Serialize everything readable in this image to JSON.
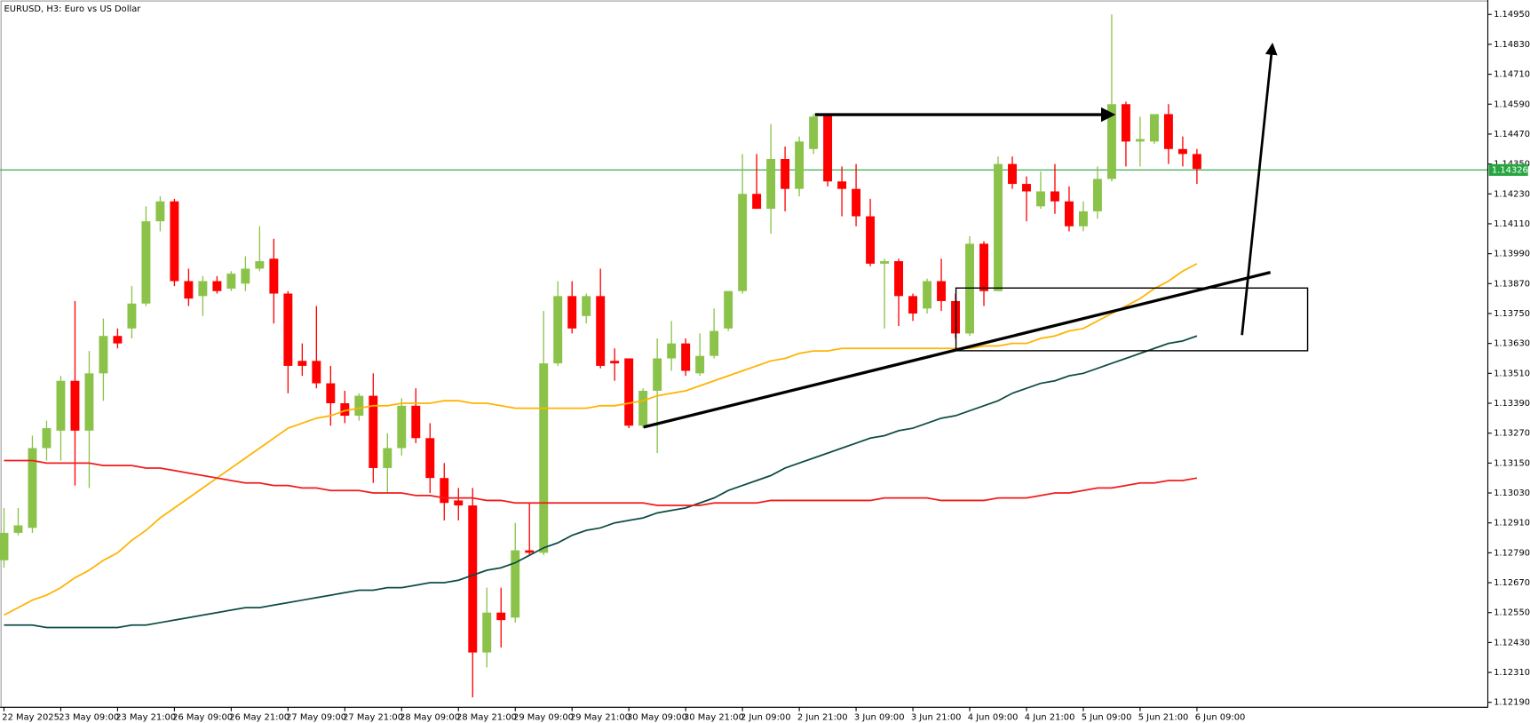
{
  "chart_data": {
    "type": "candlestick",
    "title": "EURUSD, H3:  Euro vs US Dollar",
    "categories": [
      "22 May 2025",
      null,
      null,
      null,
      "23 May 09:00",
      null,
      null,
      null,
      "23 May 21:00",
      null,
      null,
      null,
      "26 May 09:00",
      null,
      null,
      null,
      "26 May 21:00",
      null,
      null,
      null,
      "27 May 09:00",
      null,
      null,
      null,
      "27 May 21:00",
      null,
      null,
      null,
      "28 May 09:00",
      null,
      null,
      null,
      "28 May 21:00",
      null,
      null,
      null,
      "29 May 09:00",
      null,
      null,
      null,
      "29 May 21:00",
      null,
      null,
      null,
      "30 May 09:00",
      null,
      null,
      null,
      "30 May 21:00",
      null,
      null,
      null,
      "2 Jun 09:00",
      null,
      null,
      null,
      "2 Jun 21:00",
      null,
      null,
      null,
      "3 Jun 09:00",
      null,
      null,
      null,
      "3 Jun 21:00",
      null,
      null,
      null,
      "4 Jun 09:00",
      null,
      null,
      null,
      "4 Jun 21:00",
      null,
      null,
      null,
      "5 Jun 09:00",
      null,
      null,
      null,
      "5 Jun 21:00",
      null,
      null,
      null,
      "6 Jun 09:00"
    ],
    "open": [
      1.1276,
      1.1287,
      1.1289,
      1.1321,
      1.1328,
      1.1348,
      1.1328,
      1.1351,
      1.1366,
      1.1369,
      1.1379,
      1.1412,
      1.142,
      1.1388,
      1.1382,
      1.1388,
      1.1385,
      1.1387,
      1.1393,
      1.1397,
      1.1383,
      1.1356,
      1.1356,
      1.1347,
      1.1339,
      1.1334,
      1.1342,
      1.1313,
      1.1321,
      1.1338,
      1.1325,
      1.1309,
      1.13,
      1.1298,
      1.1239,
      1.1255,
      1.1253,
      1.128,
      1.1279,
      1.1355,
      1.1382,
      1.1374,
      1.1382,
      1.1356,
      1.1357,
      1.133,
      1.1344,
      1.1357,
      1.1363,
      1.1351,
      1.1358,
      1.1369,
      1.1384,
      1.1423,
      1.1417,
      1.1437,
      1.1425,
      1.1441,
      1.1455,
      1.1428,
      1.1425,
      1.1414,
      1.1395,
      1.1396,
      1.1382,
      1.1377,
      1.1388,
      1.138,
      1.1367,
      1.1403,
      1.1384,
      1.1435,
      1.1427,
      1.1418,
      1.1424,
      1.142,
      1.141,
      1.1416,
      1.1429,
      1.1459,
      1.1444,
      1.1444,
      1.1455,
      1.1441,
      1.1439
    ],
    "high": [
      1.1297,
      1.1297,
      1.1326,
      1.1332,
      1.135,
      1.138,
      1.136,
      1.1373,
      1.1369,
      1.1386,
      1.1418,
      1.1422,
      1.1421,
      1.1393,
      1.139,
      1.139,
      1.1392,
      1.1398,
      1.141,
      1.1405,
      1.1384,
      1.1363,
      1.1378,
      1.1354,
      1.1344,
      1.1343,
      1.1351,
      1.1327,
      1.1341,
      1.1345,
      1.1331,
      1.1315,
      1.1305,
      1.1305,
      1.1265,
      1.1265,
      1.1291,
      1.1299,
      1.1376,
      1.1388,
      1.1388,
      1.1383,
      1.1393,
      1.1361,
      1.1357,
      1.1345,
      1.1365,
      1.1372,
      1.1365,
      1.1367,
      1.1377,
      1.1384,
      1.1439,
      1.1439,
      1.1451,
      1.1442,
      1.1446,
      1.1455,
      1.1455,
      1.1434,
      1.1435,
      1.1421,
      1.1397,
      1.1397,
      1.1383,
      1.1389,
      1.1397,
      1.1383,
      1.1406,
      1.1404,
      1.1438,
      1.1438,
      1.143,
      1.1432,
      1.1435,
      1.1426,
      1.142,
      1.1434,
      1.1495,
      1.146,
      1.1454,
      1.1455,
      1.1459,
      1.1446,
      1.1441
    ],
    "low": [
      1.1273,
      1.1286,
      1.1287,
      1.1316,
      1.1316,
      1.1306,
      1.1305,
      1.134,
      1.1361,
      1.1365,
      1.1378,
      1.1408,
      1.1386,
      1.1378,
      1.1374,
      1.1383,
      1.1384,
      1.1384,
      1.1392,
      1.1371,
      1.1343,
      1.135,
      1.1345,
      1.133,
      1.1331,
      1.1332,
      1.1307,
      1.1303,
      1.1318,
      1.1323,
      1.1303,
      1.1292,
      1.1292,
      1.1221,
      1.1233,
      1.1241,
      1.1251,
      1.1278,
      1.1278,
      1.1354,
      1.1367,
      1.1371,
      1.1353,
      1.1348,
      1.1329,
      1.1329,
      1.1319,
      1.1352,
      1.135,
      1.135,
      1.1357,
      1.1368,
      1.1383,
      1.1417,
      1.1407,
      1.1416,
      1.1422,
      1.1439,
      1.1426,
      1.1414,
      1.141,
      1.1394,
      1.1369,
      1.137,
      1.1372,
      1.1375,
      1.1376,
      1.1365,
      1.1366,
      1.1378,
      1.1384,
      1.1425,
      1.1412,
      1.1417,
      1.1415,
      1.1408,
      1.1408,
      1.1413,
      1.1428,
      1.1434,
      1.1434,
      1.1443,
      1.1435,
      1.1434,
      1.1427
    ],
    "close": [
      1.1287,
      1.129,
      1.1321,
      1.1329,
      1.1348,
      1.1328,
      1.1351,
      1.1366,
      1.1363,
      1.1379,
      1.1412,
      1.142,
      1.1388,
      1.1381,
      1.1388,
      1.1384,
      1.1391,
      1.1393,
      1.1396,
      1.1383,
      1.1354,
      1.1354,
      1.1347,
      1.1339,
      1.1334,
      1.1342,
      1.1313,
      1.1321,
      1.1338,
      1.1325,
      1.1309,
      1.1299,
      1.1298,
      1.1239,
      1.1255,
      1.1252,
      1.128,
      1.1279,
      1.1355,
      1.1382,
      1.1369,
      1.1382,
      1.1354,
      1.1355,
      1.133,
      1.1344,
      1.1357,
      1.1363,
      1.1352,
      1.1358,
      1.1368,
      1.1384,
      1.1423,
      1.1417,
      1.1437,
      1.1425,
      1.1444,
      1.1454,
      1.1428,
      1.1425,
      1.1414,
      1.1395,
      1.1396,
      1.1382,
      1.1375,
      1.1388,
      1.138,
      1.1367,
      1.1403,
      1.1384,
      1.1435,
      1.1427,
      1.1424,
      1.1424,
      1.142,
      1.141,
      1.1416,
      1.1429,
      1.1459,
      1.1444,
      1.1445,
      1.1455,
      1.1441,
      1.1439,
      1.1433
    ],
    "up_color": "#8bc34a",
    "down_color": "#ff0000",
    "series": [
      {
        "color": "#ffb300",
        "values": [
          1.1254,
          1.1257,
          1.126,
          1.1262,
          1.1265,
          1.1269,
          1.1272,
          1.1276,
          1.1279,
          1.1284,
          1.1288,
          1.1293,
          1.1297,
          1.1301,
          1.1305,
          1.1309,
          1.1313,
          1.1317,
          1.1321,
          1.1325,
          1.1329,
          1.1331,
          1.1333,
          1.1334,
          1.1336,
          1.1337,
          1.1338,
          1.1338,
          1.1339,
          1.1339,
          1.1339,
          1.134,
          1.134,
          1.1339,
          1.1339,
          1.1338,
          1.1337,
          1.1337,
          1.1337,
          1.1337,
          1.1337,
          1.1337,
          1.1338,
          1.1338,
          1.1339,
          1.134,
          1.1342,
          1.1343,
          1.1344,
          1.1346,
          1.1348,
          1.135,
          1.1352,
          1.1354,
          1.1356,
          1.1357,
          1.1359,
          1.136,
          1.136,
          1.1361,
          1.1361,
          1.1361,
          1.1361,
          1.1361,
          1.1361,
          1.1361,
          1.1361,
          1.1361,
          1.1361,
          1.1362,
          1.1362,
          1.1363,
          1.1363,
          1.1365,
          1.1366,
          1.1368,
          1.1369,
          1.1372,
          1.1375,
          1.1378,
          1.1381,
          1.1385,
          1.1388,
          1.1392,
          1.1395
        ]
      },
      {
        "color": "#0f4c45",
        "values": [
          1.125,
          1.125,
          1.125,
          1.1249,
          1.1249,
          1.1249,
          1.1249,
          1.1249,
          1.1249,
          1.125,
          1.125,
          1.1251,
          1.1252,
          1.1253,
          1.1254,
          1.1255,
          1.1256,
          1.1257,
          1.1257,
          1.1258,
          1.1259,
          1.126,
          1.1261,
          1.1262,
          1.1263,
          1.1264,
          1.1264,
          1.1265,
          1.1265,
          1.1266,
          1.1267,
          1.1267,
          1.1268,
          1.127,
          1.1272,
          1.1273,
          1.1275,
          1.1278,
          1.1281,
          1.1283,
          1.1286,
          1.1288,
          1.1289,
          1.1291,
          1.1292,
          1.1293,
          1.1295,
          1.1296,
          1.1297,
          1.1299,
          1.1301,
          1.1304,
          1.1306,
          1.1308,
          1.131,
          1.1313,
          1.1315,
          1.1317,
          1.1319,
          1.1321,
          1.1323,
          1.1325,
          1.1326,
          1.1328,
          1.1329,
          1.1331,
          1.1333,
          1.1334,
          1.1336,
          1.1338,
          1.134,
          1.1343,
          1.1345,
          1.1347,
          1.1348,
          1.135,
          1.1351,
          1.1353,
          1.1355,
          1.1357,
          1.1359,
          1.1361,
          1.1363,
          1.1364,
          1.1366
        ]
      },
      {
        "color": "#f21b1b",
        "values": [
          1.1316,
          1.1316,
          1.1316,
          1.1315,
          1.1315,
          1.1315,
          1.1315,
          1.1314,
          1.1314,
          1.1314,
          1.1313,
          1.1313,
          1.1312,
          1.1311,
          1.131,
          1.1309,
          1.1308,
          1.1307,
          1.1307,
          1.1306,
          1.1306,
          1.1305,
          1.1305,
          1.1304,
          1.1304,
          1.1304,
          1.1303,
          1.1303,
          1.1303,
          1.1302,
          1.1302,
          1.1301,
          1.1301,
          1.1301,
          1.13,
          1.13,
          1.1299,
          1.1299,
          1.1299,
          1.1299,
          1.1299,
          1.1299,
          1.1299,
          1.1299,
          1.1299,
          1.1299,
          1.1298,
          1.1298,
          1.1298,
          1.1298,
          1.1299,
          1.1299,
          1.1299,
          1.1299,
          1.13,
          1.13,
          1.13,
          1.13,
          1.13,
          1.13,
          1.13,
          1.13,
          1.1301,
          1.1301,
          1.1301,
          1.1301,
          1.13,
          1.13,
          1.13,
          1.13,
          1.1301,
          1.1301,
          1.1301,
          1.1302,
          1.1303,
          1.1303,
          1.1304,
          1.1305,
          1.1305,
          1.1306,
          1.1307,
          1.1307,
          1.1308,
          1.1308,
          1.1309
        ]
      }
    ],
    "last_price": 1.14326,
    "last_price_color": "#26a541",
    "ylim": [
      1.1217,
      1.15
    ],
    "yticks": [
      {
        "value": 1.1219,
        "label": "1.12190"
      },
      {
        "value": 1.1231,
        "label": "1.12310"
      },
      {
        "value": 1.1243,
        "label": "1.12430"
      },
      {
        "value": 1.1255,
        "label": "1.12550"
      },
      {
        "value": 1.1267,
        "label": "1.12670"
      },
      {
        "value": 1.1279,
        "label": "1.12790"
      },
      {
        "value": 1.1291,
        "label": "1.12910"
      },
      {
        "value": 1.1303,
        "label": "1.13030"
      },
      {
        "value": 1.1315,
        "label": "1.13150"
      },
      {
        "value": 1.1327,
        "label": "1.13270"
      },
      {
        "value": 1.1339,
        "label": "1.13390"
      },
      {
        "value": 1.1351,
        "label": "1.13510"
      },
      {
        "value": 1.1363,
        "label": "1.13630"
      },
      {
        "value": 1.1375,
        "label": "1.13750"
      },
      {
        "value": 1.1387,
        "label": "1.13870"
      },
      {
        "value": 1.1399,
        "label": "1.13990"
      },
      {
        "value": 1.1411,
        "label": "1.14110"
      },
      {
        "value": 1.1423,
        "label": "1.14230"
      },
      {
        "value": 1.1435,
        "label": "1.14350"
      },
      {
        "value": 1.1447,
        "label": "1.14470"
      },
      {
        "value": 1.1459,
        "label": "1.14590"
      },
      {
        "value": 1.1471,
        "label": "1.14710"
      },
      {
        "value": 1.1483,
        "label": "1.14830"
      },
      {
        "value": 1.1495,
        "label": "1.14950"
      }
    ],
    "grid": false
  }
}
